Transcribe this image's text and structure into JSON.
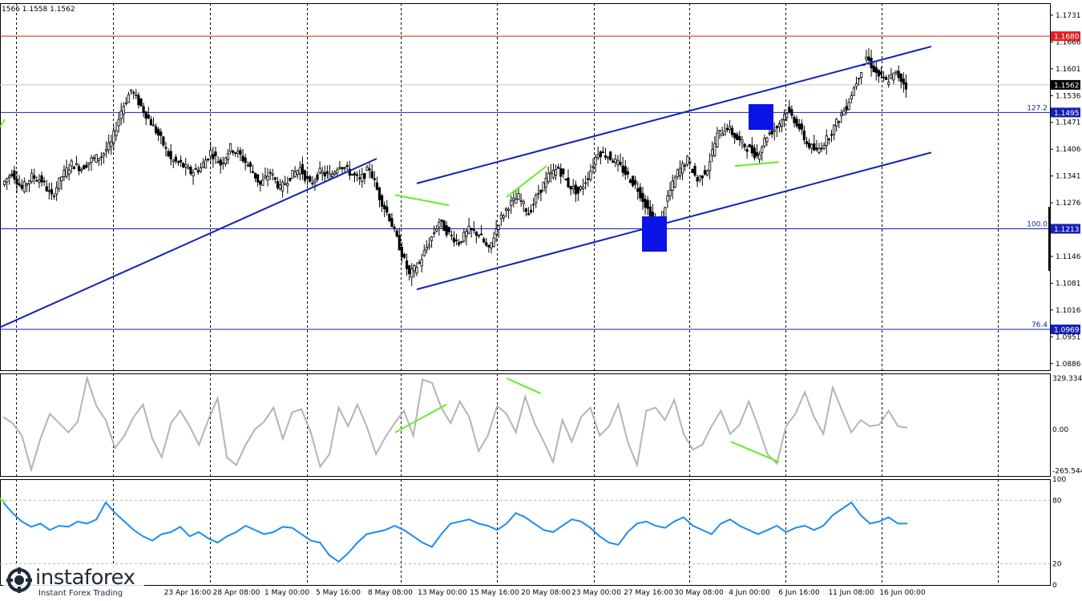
{
  "header": {
    "ohlc": "1566 1.1558 1.1562"
  },
  "logo": {
    "main": "instaforex",
    "sub": "Instant Forex Trading",
    "icon": "instaforex-logo-icon"
  },
  "colors": {
    "background": "#ffffff",
    "candle": "#000000",
    "trendline": "#1420b4",
    "level_line": "#1420b4",
    "red_line": "#e02020",
    "marker": "#0a14e6",
    "divergence": "#66ee22",
    "cci": "#b4b4b4",
    "rsi": "#1e8cf0"
  },
  "chart_data": [
    {
      "type": "candlestick",
      "title": "",
      "x_labels": [
        "23 Apr 16:00",
        "28 Apr 08:00",
        "1 May 00:00",
        "5 May 16:00",
        "8 May 08:00",
        "13 May 00:00",
        "15 May 16:00",
        "20 May 08:00",
        "23 May 00:00",
        "27 May 16:00",
        "30 May 08:00",
        "4 Jun 00:00",
        "6 Jun 16:00",
        "11 Jun 08:00",
        "16 Jun 00:00"
      ],
      "y_ticks": [
        "1.1731",
        "1.1666",
        "1.1601",
        "1.1536",
        "1.1471",
        "1.1406",
        "1.1341",
        "1.1276",
        "1.1146",
        "1.1081",
        "1.1016",
        "1.0951",
        "1.0886"
      ],
      "ylim": [
        1.087,
        1.176
      ],
      "current_price": "1.1562",
      "price_path": [
        1.132,
        1.135,
        1.131,
        1.134,
        1.133,
        1.129,
        1.134,
        1.137,
        1.136,
        1.138,
        1.139,
        1.142,
        1.15,
        1.155,
        1.151,
        1.147,
        1.143,
        1.138,
        1.137,
        1.135,
        1.136,
        1.14,
        1.137,
        1.141,
        1.139,
        1.136,
        1.132,
        1.135,
        1.131,
        1.134,
        1.136,
        1.132,
        1.135,
        1.134,
        1.137,
        1.135,
        1.133,
        1.136,
        1.129,
        1.124,
        1.117,
        1.11,
        1.113,
        1.118,
        1.123,
        1.12,
        1.118,
        1.121,
        1.12,
        1.116,
        1.123,
        1.127,
        1.129,
        1.125,
        1.13,
        1.134,
        1.136,
        1.132,
        1.13,
        1.134,
        1.14,
        1.139,
        1.137,
        1.134,
        1.131,
        1.126,
        1.121,
        1.129,
        1.135,
        1.138,
        1.133,
        1.136,
        1.144,
        1.146,
        1.143,
        1.141,
        1.139,
        1.144,
        1.146,
        1.15,
        1.147,
        1.142,
        1.14,
        1.143,
        1.147,
        1.151,
        1.157,
        1.163,
        1.159,
        1.157,
        1.159,
        1.156
      ],
      "levels": [
        {
          "value": 1.168,
          "label": "1.1680",
          "fib": "",
          "color": "red"
        },
        {
          "value": 1.1562,
          "label": "1.1562",
          "fib": "",
          "color": "current"
        },
        {
          "value": 1.1495,
          "label": "1.1495",
          "fib": "127.2",
          "color": "blue"
        },
        {
          "value": 1.1213,
          "label": "1.1213",
          "fib": "100.0",
          "color": "blue"
        },
        {
          "value": 1.0969,
          "label": "1.0969",
          "fib": "76.4",
          "color": "blue"
        }
      ]
    },
    {
      "type": "line",
      "name": "",
      "ticks": [
        "329.3341",
        "0.00",
        "-265.544"
      ],
      "ylim": [
        -300,
        360
      ],
      "values": [
        80,
        40,
        -40,
        -260,
        -60,
        100,
        40,
        -20,
        50,
        329,
        150,
        60,
        -120,
        -40,
        80,
        160,
        -60,
        -180,
        40,
        120,
        20,
        -100,
        60,
        200,
        -180,
        -230,
        -100,
        0,
        50,
        140,
        -60,
        110,
        130,
        -20,
        -240,
        -160,
        140,
        20,
        160,
        20,
        -160,
        -50,
        40,
        120,
        -40,
        320,
        300,
        140,
        40,
        180,
        80,
        -140,
        -40,
        150,
        100,
        -20,
        210,
        40,
        -80,
        -210,
        60,
        -80,
        80,
        140,
        -40,
        20,
        160,
        -80,
        -230,
        120,
        140,
        60,
        190,
        -30,
        -130,
        -100,
        20,
        120,
        -30,
        30,
        180,
        20,
        -160,
        -220,
        20,
        100,
        240,
        80,
        -30,
        270,
        120,
        -20,
        60,
        20,
        30,
        120,
        20,
        10
      ]
    },
    {
      "type": "line",
      "name": "",
      "ticks": [
        "100",
        "80",
        "20",
        "0"
      ],
      "ylim": [
        0,
        100
      ],
      "values": [
        78,
        68,
        60,
        55,
        58,
        52,
        56,
        55,
        60,
        58,
        62,
        78,
        68,
        60,
        52,
        46,
        42,
        48,
        50,
        55,
        46,
        50,
        44,
        40,
        46,
        50,
        56,
        52,
        48,
        50,
        55,
        54,
        48,
        42,
        40,
        28,
        22,
        30,
        40,
        48,
        50,
        52,
        56,
        52,
        46,
        40,
        36,
        48,
        58,
        60,
        62,
        58,
        56,
        52,
        58,
        68,
        64,
        58,
        52,
        50,
        56,
        62,
        60,
        54,
        46,
        40,
        38,
        50,
        58,
        60,
        56,
        54,
        60,
        64,
        56,
        52,
        48,
        58,
        62,
        56,
        52,
        48,
        52,
        56,
        50,
        54,
        56,
        52,
        56,
        66,
        72,
        78,
        66,
        58,
        60,
        64,
        58,
        58
      ]
    }
  ]
}
